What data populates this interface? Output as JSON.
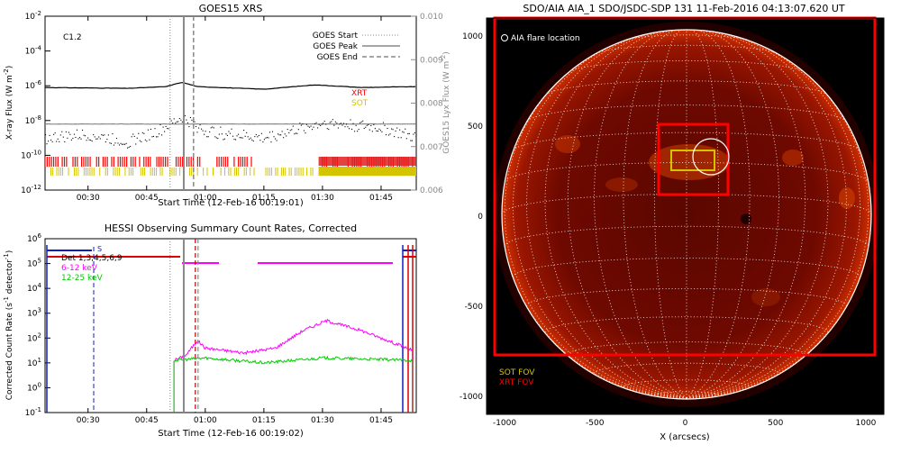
{
  "chart_data": [
    {
      "type": "line",
      "title": "GOES15 XRS",
      "xlabel": "Start Time (12-Feb-16 00:19:01)",
      "ylabel": "X-ray Flux (W m",
      "ylabel_sup": "-2",
      "ylabel_tail": ")",
      "y2label": "GOES15 Lyx Flux (W m",
      "y2label_sup": "-2",
      "y2label_tail": ")",
      "flare_class": "C1.2",
      "xlim": [
        19,
        55
      ],
      "x_ticks": [
        {
          "v": 30,
          "label": "00:30"
        },
        {
          "v": 45,
          "label": "00:45"
        },
        {
          "v": 60,
          "label": "01:00"
        },
        {
          "v": 75,
          "label": "01:15"
        },
        {
          "v": 90,
          "label": "01:30"
        },
        {
          "v": 105,
          "label": "01:45"
        }
      ],
      "xlim_minutes": [
        19,
        114
      ],
      "ylim_log": [
        -12,
        -2
      ],
      "y_ticks": [
        {
          "exp": "-2"
        },
        {
          "exp": "-4"
        },
        {
          "exp": "-6"
        },
        {
          "exp": "-8"
        },
        {
          "exp": "-10"
        },
        {
          "exp": "-12"
        }
      ],
      "y_tick_base": "10",
      "y2lim": [
        0.006,
        0.01
      ],
      "y2_ticks": [
        "0.010",
        "0.009",
        "0.008",
        "0.007",
        "0.006"
      ],
      "legend": [
        {
          "name": "GOES Start",
          "style": "dotted"
        },
        {
          "name": "GOES Peak",
          "style": "solid"
        },
        {
          "name": "GOES End",
          "style": "dashed"
        }
      ],
      "legend_position": "top-right",
      "instrument_rows": [
        {
          "name": "XRT",
          "color": "#ff0000"
        },
        {
          "name": "SOT",
          "color": "#d4c400"
        }
      ],
      "vlines_minutes": {
        "start": 51,
        "peak": 54.5,
        "end": 57
      },
      "series": [
        {
          "name": "",
          "color": "#000000",
          "log_flux_minutes": [
            [
              19,
              -6.1
            ],
            [
              40,
              -6.15
            ],
            [
              50,
              -6.05
            ],
            [
              54,
              -5.8
            ],
            [
              58,
              -6.05
            ],
            [
              75,
              -6.2
            ],
            [
              88,
              -5.95
            ],
            [
              100,
              -6.1
            ],
            [
              114,
              -6.05
            ]
          ]
        },
        {
          "name": "",
          "color": "#888888",
          "log_flux_minutes": [
            [
              19,
              -8.2
            ],
            [
              114,
              -8.2
            ]
          ]
        },
        {
          "name": "",
          "color": "#000000",
          "style": "dotted",
          "log_flux_minutes": [
            [
              19,
              -9.0
            ],
            [
              30,
              -8.8
            ],
            [
              40,
              -9.2
            ],
            [
              48,
              -8.6
            ],
            [
              54,
              -7.8
            ],
            [
              60,
              -8.6
            ],
            [
              75,
              -9.0
            ],
            [
              90,
              -8.1
            ],
            [
              105,
              -8.4
            ],
            [
              114,
              -9.0
            ]
          ]
        }
      ]
    },
    {
      "type": "line",
      "title": "HESSI Observing Summary Count Rates, Corrected",
      "xlabel": "Start Time (12-Feb-16 00:19:02)",
      "ylabel": "Corrected Count Rate (s",
      "ylabel_sup": "-1",
      "ylabel_tail": " detector",
      "ylabel_sup2": "-1",
      "ylabel_end": ")",
      "x_ticks": [
        {
          "v": 30,
          "label": "00:30"
        },
        {
          "v": 45,
          "label": "00:45"
        },
        {
          "v": 60,
          "label": "01:00"
        },
        {
          "v": 75,
          "label": "01:15"
        },
        {
          "v": 90,
          "label": "01:30"
        },
        {
          "v": 105,
          "label": "01:45"
        }
      ],
      "xlim_minutes": [
        19,
        114
      ],
      "ylim_log": [
        -1,
        6
      ],
      "y_ticks": [
        {
          "exp": "6"
        },
        {
          "exp": "5"
        },
        {
          "exp": "4"
        },
        {
          "exp": "3"
        },
        {
          "exp": "2"
        },
        {
          "exp": "1"
        },
        {
          "exp": "0"
        },
        {
          "exp": "-1"
        }
      ],
      "y_tick_base": "10",
      "legend": [
        {
          "name": "Det 1,3,4,5,6,9",
          "color": "#000000"
        },
        {
          "name": "6-12 keV",
          "color": "#ff00ff"
        },
        {
          "name": "12-25 keV",
          "color": "#00cc00"
        }
      ],
      "marker_label": "S",
      "series": [
        {
          "name": "6-12 keV",
          "color": "#ff00ff",
          "log_rate_minutes": [
            [
              52,
              1.1
            ],
            [
              55,
              1.3
            ],
            [
              58,
              1.9
            ],
            [
              60,
              1.6
            ],
            [
              70,
              1.4
            ],
            [
              78,
              1.6
            ],
            [
              85,
              2.3
            ],
            [
              91,
              2.7
            ],
            [
              100,
              2.3
            ],
            [
              110,
              1.7
            ],
            [
              113,
              1.5
            ]
          ]
        },
        {
          "name": "12-25 keV",
          "color": "#00cc00",
          "log_rate_minutes": [
            [
              52,
              1.1
            ],
            [
              60,
              1.2
            ],
            [
              75,
              1.0
            ],
            [
              90,
              1.2
            ],
            [
              113,
              1.1
            ]
          ]
        }
      ]
    },
    {
      "type": "other",
      "title": "SDO/AIA AIA_1 SDO/JSDC-SDP 131 11-Feb-2016 04:13:07.620 UT",
      "xlabel": "X (arcsecs)",
      "ylabel": "",
      "flare_location_label": "AIA flare location",
      "x_ticks": [
        "-1000",
        "-500",
        "0",
        "500",
        "1000"
      ],
      "y_ticks": [
        "1000",
        "500",
        "0",
        "-500",
        "-1000"
      ],
      "xlim": [
        -1100,
        1100
      ],
      "ylim": [
        -1100,
        1100
      ],
      "fov_legend": [
        {
          "name": "SOT FOV",
          "color": "#d4c400"
        },
        {
          "name": "XRT FOV",
          "color": "#ff0000"
        }
      ],
      "aia_flare_location": [
        100,
        350
      ],
      "sot_fov_center": [
        0,
        300
      ],
      "xrt_fov_center": [
        0,
        380
      ]
    }
  ]
}
